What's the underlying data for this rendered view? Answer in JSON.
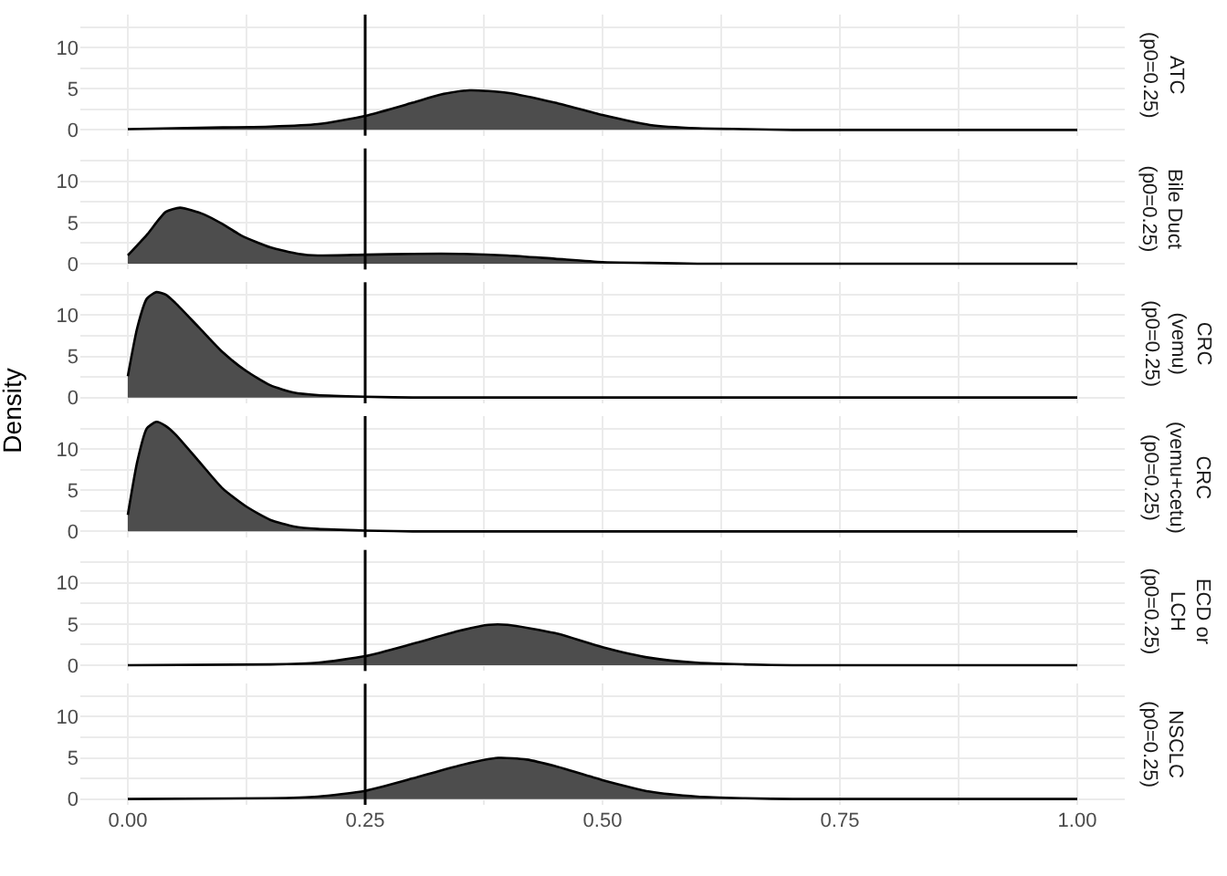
{
  "chart_data": [
    {
      "type": "area",
      "y2label": "ATC\n(p0=0.25)",
      "tick_labels": "y",
      "grid": true,
      "x": [
        0,
        0.05,
        0.1,
        0.15,
        0.2,
        0.25,
        0.3,
        0.33,
        0.36,
        0.4,
        0.45,
        0.5,
        0.55,
        0.6,
        0.65,
        0.7,
        0.8,
        1.0
      ],
      "series": [
        {
          "color": "#4d4d4d",
          "values": [
            0.1,
            0.2,
            0.3,
            0.4,
            0.7,
            1.7,
            3.3,
            4.3,
            4.8,
            4.5,
            3.3,
            1.8,
            0.6,
            0.2,
            0.1,
            0,
            0,
            0
          ]
        }
      ],
      "xlim": [
        -0.05,
        1.05
      ],
      "ylim": [
        -0.7,
        14
      ],
      "xticks": [
        0,
        {
          "value": 0.125,
          "label": null
        },
        0.25,
        {
          "value": 0.375,
          "label": null
        },
        0.5,
        {
          "value": 0.625,
          "label": null
        },
        0.75,
        {
          "value": 0.875,
          "label": null
        },
        1
      ],
      "yticks": [
        0,
        {
          "value": 2.5,
          "label": null
        },
        5,
        {
          "value": 7.5,
          "label": null
        },
        10,
        {
          "value": 12.5,
          "label": null
        }
      ],
      "ref_lines": [
        {
          "axis": "x",
          "value": 0.25,
          "color": "#000000"
        }
      ]
    },
    {
      "type": "area",
      "y2label": "Bile Duct\n(p0=0.25)",
      "tick_labels": "y",
      "grid": true,
      "x": [
        0,
        0.02,
        0.04,
        0.055,
        0.08,
        0.1,
        0.12,
        0.15,
        0.18,
        0.2,
        0.25,
        0.3,
        0.35,
        0.4,
        0.45,
        0.5,
        0.55,
        0.6,
        1.0
      ],
      "series": [
        {
          "color": "#4d4d4d",
          "values": [
            1.0,
            3.5,
            6.3,
            6.8,
            6.0,
            4.8,
            3.4,
            2.0,
            1.2,
            1.0,
            1.1,
            1.2,
            1.2,
            1.0,
            0.6,
            0.2,
            0.1,
            0,
            0
          ]
        }
      ],
      "xlim": [
        -0.05,
        1.05
      ],
      "ylim": [
        -0.7,
        14
      ],
      "xticks": [
        0,
        {
          "value": 0.125,
          "label": null
        },
        0.25,
        {
          "value": 0.375,
          "label": null
        },
        0.5,
        {
          "value": 0.625,
          "label": null
        },
        0.75,
        {
          "value": 0.875,
          "label": null
        },
        1
      ],
      "yticks": [
        0,
        {
          "value": 2.5,
          "label": null
        },
        5,
        {
          "value": 7.5,
          "label": null
        },
        10,
        {
          "value": 12.5,
          "label": null
        }
      ],
      "ref_lines": [
        {
          "axis": "x",
          "value": 0.25,
          "color": "#000000"
        }
      ]
    },
    {
      "type": "area",
      "y2label": "CRC\n(vemu)\n(p0=0.25)",
      "tick_labels": "y",
      "grid": true,
      "x": [
        0,
        0.01,
        0.02,
        0.03,
        0.04,
        0.05,
        0.075,
        0.1,
        0.125,
        0.15,
        0.175,
        0.2,
        0.25,
        0.3,
        1.0
      ],
      "series": [
        {
          "color": "#4d4d4d",
          "values": [
            2.6,
            8.5,
            12.0,
            12.8,
            12.5,
            11.5,
            8.5,
            5.5,
            3.2,
            1.5,
            0.6,
            0.3,
            0.1,
            0,
            0
          ]
        }
      ],
      "xlim": [
        -0.05,
        1.05
      ],
      "ylim": [
        -0.7,
        14
      ],
      "xticks": [
        0,
        {
          "value": 0.125,
          "label": null
        },
        0.25,
        {
          "value": 0.375,
          "label": null
        },
        0.5,
        {
          "value": 0.625,
          "label": null
        },
        0.75,
        {
          "value": 0.875,
          "label": null
        },
        1
      ],
      "yticks": [
        0,
        {
          "value": 2.5,
          "label": null
        },
        5,
        {
          "value": 7.5,
          "label": null
        },
        10,
        {
          "value": 12.5,
          "label": null
        }
      ],
      "ref_lines": [
        {
          "axis": "x",
          "value": 0.25,
          "color": "#000000"
        }
      ]
    },
    {
      "type": "area",
      "y2label": "CRC\n(vemu+cetu)\n(p0=0.25)",
      "ylabel": "Density",
      "tick_labels": "y",
      "grid": true,
      "x": [
        0,
        0.01,
        0.02,
        0.03,
        0.04,
        0.05,
        0.075,
        0.1,
        0.125,
        0.15,
        0.175,
        0.2,
        0.25,
        0.3,
        1.0
      ],
      "series": [
        {
          "color": "#4d4d4d",
          "values": [
            2.0,
            8.5,
            12.5,
            13.3,
            12.8,
            11.8,
            8.5,
            5.2,
            3.0,
            1.4,
            0.6,
            0.3,
            0.1,
            0,
            0
          ]
        }
      ],
      "xlim": [
        -0.05,
        1.05
      ],
      "ylim": [
        -0.7,
        14
      ],
      "xticks": [
        0,
        {
          "value": 0.125,
          "label": null
        },
        0.25,
        {
          "value": 0.375,
          "label": null
        },
        0.5,
        {
          "value": 0.625,
          "label": null
        },
        0.75,
        {
          "value": 0.875,
          "label": null
        },
        1
      ],
      "yticks": [
        0,
        {
          "value": 2.5,
          "label": null
        },
        5,
        {
          "value": 7.5,
          "label": null
        },
        10,
        {
          "value": 12.5,
          "label": null
        }
      ],
      "ref_lines": [
        {
          "axis": "x",
          "value": 0.25,
          "color": "#000000"
        }
      ]
    },
    {
      "type": "area",
      "y2label": "ECD or\nLCH\n(p0=0.25)",
      "tick_labels": "y",
      "grid": true,
      "x": [
        0,
        0.15,
        0.2,
        0.25,
        0.3,
        0.35,
        0.38,
        0.4,
        0.45,
        0.5,
        0.55,
        0.6,
        0.65,
        0.7,
        1.0
      ],
      "series": [
        {
          "color": "#4d4d4d",
          "values": [
            0,
            0.1,
            0.3,
            1.1,
            2.6,
            4.2,
            4.9,
            4.9,
            3.9,
            2.2,
            0.9,
            0.3,
            0.1,
            0,
            0
          ]
        }
      ],
      "xlim": [
        -0.05,
        1.05
      ],
      "ylim": [
        -0.7,
        14
      ],
      "xticks": [
        0,
        {
          "value": 0.125,
          "label": null
        },
        0.25,
        {
          "value": 0.375,
          "label": null
        },
        0.5,
        {
          "value": 0.625,
          "label": null
        },
        0.75,
        {
          "value": 0.875,
          "label": null
        },
        1
      ],
      "yticks": [
        0,
        {
          "value": 2.5,
          "label": null
        },
        5,
        {
          "value": 7.5,
          "label": null
        },
        10,
        {
          "value": 12.5,
          "label": null
        }
      ],
      "ref_lines": [
        {
          "axis": "x",
          "value": 0.25,
          "color": "#000000"
        }
      ]
    },
    {
      "type": "area",
      "y2label": "NSCLC\n(p0=0.25)",
      "grid": true,
      "x": [
        0,
        0.15,
        0.2,
        0.25,
        0.3,
        0.35,
        0.39,
        0.42,
        0.45,
        0.5,
        0.55,
        0.6,
        0.65,
        0.7,
        1.0
      ],
      "series": [
        {
          "color": "#4d4d4d",
          "values": [
            0,
            0.1,
            0.3,
            1.0,
            2.5,
            4.1,
            5.0,
            4.8,
            4.0,
            2.3,
            0.9,
            0.3,
            0.1,
            0,
            0
          ]
        }
      ],
      "xlim": [
        -0.05,
        1.05
      ],
      "ylim": [
        -0.7,
        14
      ],
      "xticks": [
        {
          "value": 0,
          "label": "0.00"
        },
        {
          "value": 0.125,
          "label": null
        },
        0.25,
        {
          "value": 0.375,
          "label": null
        },
        {
          "value": 0.5,
          "label": "0.50"
        },
        {
          "value": 0.625,
          "label": null
        },
        0.75,
        {
          "value": 0.875,
          "label": null
        },
        {
          "value": 1,
          "label": "1.00"
        }
      ],
      "yticks": [
        0,
        {
          "value": 2.5,
          "label": null
        },
        5,
        {
          "value": 7.5,
          "label": null
        },
        10,
        {
          "value": 12.5,
          "label": null
        }
      ],
      "ref_lines": [
        {
          "axis": "x",
          "value": 0.25,
          "color": "#000000"
        }
      ]
    }
  ]
}
